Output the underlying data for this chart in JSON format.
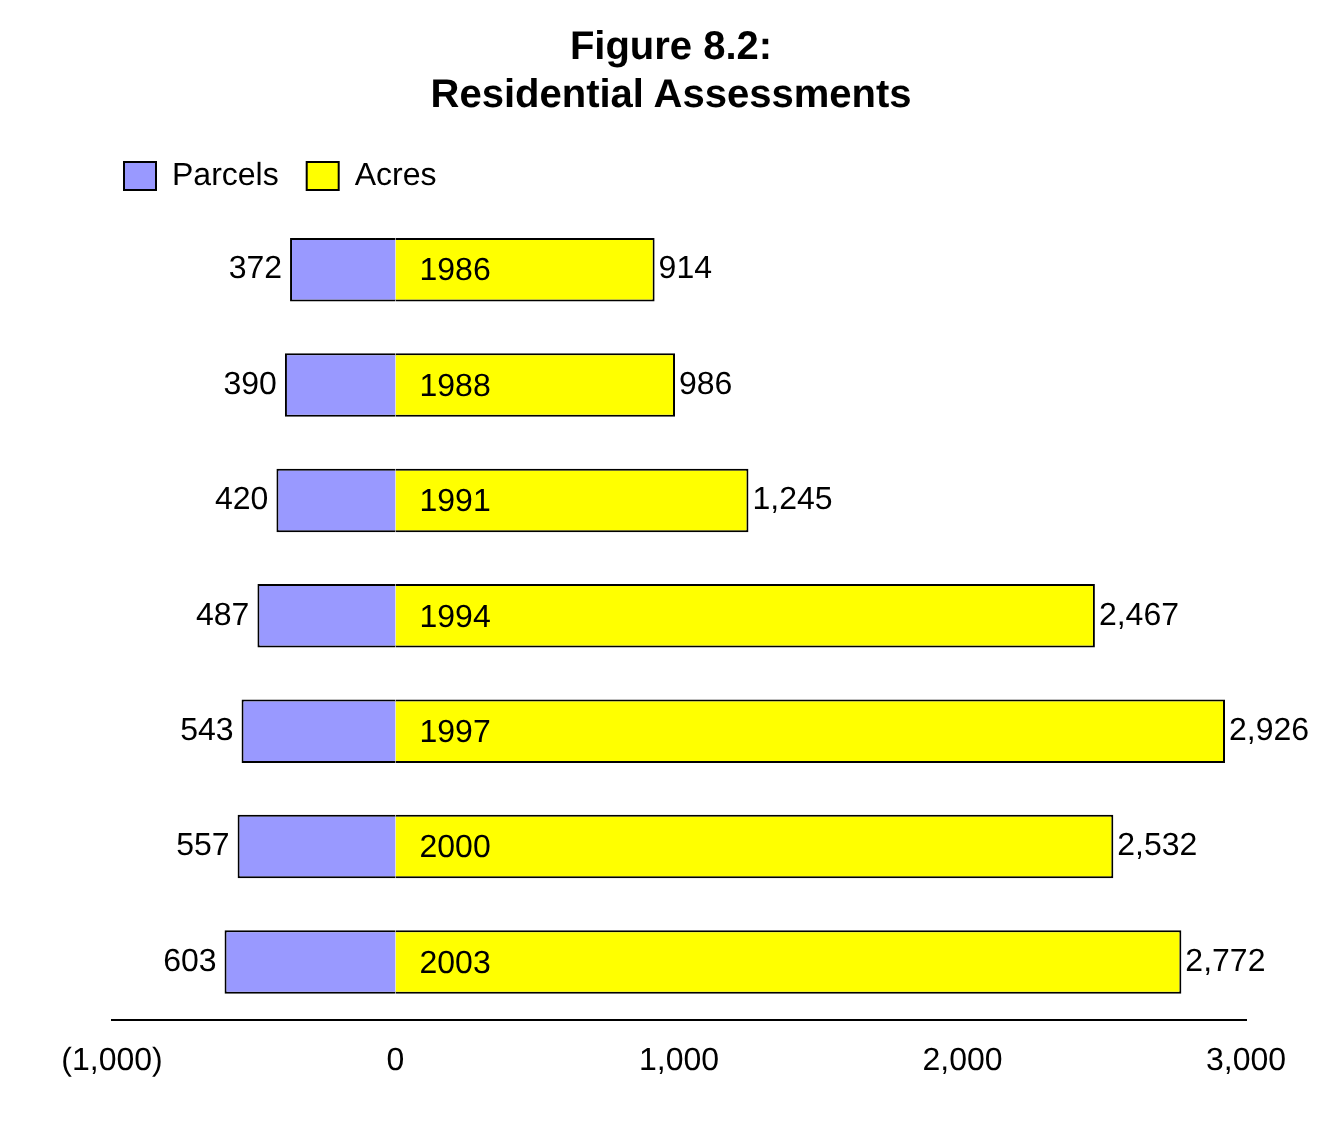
{
  "chart_data": {
    "type": "bar",
    "orientation": "horizontal",
    "title": "Figure 8.2:",
    "subtitle": "Residential Assessments",
    "categories": [
      "1986",
      "1988",
      "1991",
      "1994",
      "1997",
      "2000",
      "2003"
    ],
    "series": [
      {
        "name": "Parcels",
        "color": "#9999ff",
        "values": [
          372,
          390,
          420,
          487,
          543,
          557,
          603
        ],
        "base": [
          -372,
          -390,
          -420,
          -487,
          -543,
          -557,
          -603
        ],
        "value_labels": [
          "372",
          "390",
          "420",
          "487",
          "543",
          "557",
          "603"
        ]
      },
      {
        "name": "Acres",
        "color": "#ffff00",
        "values": [
          914,
          986,
          1245,
          2467,
          2926,
          2532,
          2772
        ],
        "value_labels": [
          "914",
          "986",
          "1,245",
          "2,467",
          "2,926",
          "2,532",
          "2,772"
        ]
      }
    ],
    "xlim": [
      -1000,
      3000
    ],
    "xticks": [
      {
        "value": -1000,
        "label": "(1,000)"
      },
      0,
      {
        "value": 1000,
        "label": "1,000"
      },
      {
        "value": 2000,
        "label": "2,000"
      },
      {
        "value": 3000,
        "label": "3,000"
      }
    ],
    "grid": false,
    "legend": "top left"
  }
}
